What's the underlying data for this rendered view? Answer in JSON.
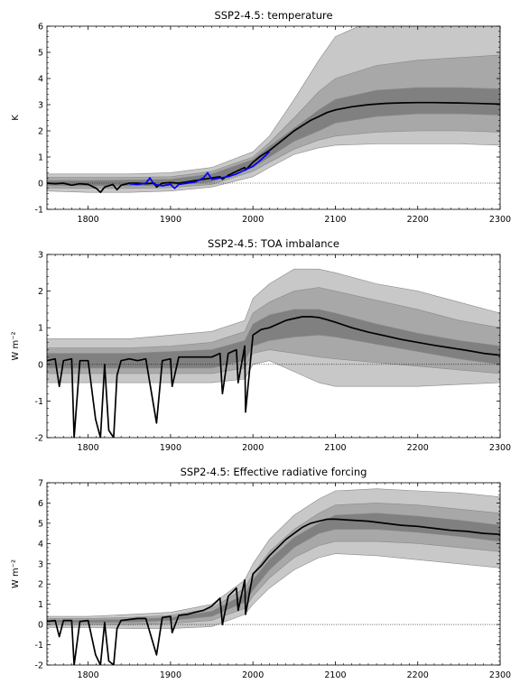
{
  "chart_data": [
    {
      "type": "area",
      "title": "SSP2-4.5: temperature",
      "ylabel": "K",
      "xlim": [
        1750,
        2300
      ],
      "ylim": [
        -1,
        6
      ],
      "xticks": [
        "1800",
        "1900",
        "2000",
        "2100",
        "2200",
        "2300"
      ],
      "yticks": [
        "-1",
        "0",
        "1",
        "2",
        "3",
        "4",
        "5",
        "6"
      ],
      "zero_line": true,
      "bands": [
        {
          "name": "outer",
          "color": "#c8c8c8",
          "x": [
            1750,
            1800,
            1850,
            1900,
            1950,
            2000,
            2020,
            2050,
            2080,
            2100,
            2150,
            2200,
            2250,
            2300
          ],
          "lower": [
            -0.3,
            -0.35,
            -0.35,
            -0.3,
            -0.15,
            0.25,
            0.6,
            1.1,
            1.35,
            1.45,
            1.5,
            1.5,
            1.5,
            1.45
          ],
          "upper": [
            0.35,
            0.35,
            0.35,
            0.4,
            0.6,
            1.2,
            1.8,
            3.2,
            4.7,
            5.6,
            6.3,
            6.6,
            6.8,
            6.9
          ]
        },
        {
          "name": "middle",
          "color": "#a8a8a8",
          "x": [
            1750,
            1800,
            1850,
            1900,
            1950,
            2000,
            2020,
            2050,
            2080,
            2100,
            2150,
            2200,
            2250,
            2300
          ],
          "lower": [
            -0.18,
            -0.2,
            -0.2,
            -0.17,
            -0.05,
            0.45,
            0.8,
            1.3,
            1.65,
            1.8,
            1.95,
            2.0,
            2.0,
            1.95
          ],
          "upper": [
            0.22,
            0.22,
            0.22,
            0.25,
            0.45,
            1.0,
            1.55,
            2.5,
            3.5,
            4.0,
            4.5,
            4.7,
            4.8,
            4.9
          ]
        },
        {
          "name": "inner",
          "color": "#808080",
          "x": [
            1750,
            1800,
            1850,
            1900,
            1950,
            2000,
            2020,
            2050,
            2080,
            2100,
            2150,
            2200,
            2250,
            2300
          ],
          "lower": [
            -0.08,
            -0.1,
            -0.1,
            -0.08,
            0.05,
            0.6,
            1.0,
            1.6,
            2.0,
            2.3,
            2.55,
            2.65,
            2.65,
            2.6
          ],
          "upper": [
            0.1,
            0.1,
            0.12,
            0.15,
            0.35,
            0.9,
            1.4,
            2.1,
            2.8,
            3.2,
            3.55,
            3.65,
            3.65,
            3.6
          ]
        }
      ],
      "series": [
        {
          "color": "#000000",
          "x": [
            1750,
            1760,
            1770,
            1780,
            1790,
            1800,
            1810,
            1815,
            1820,
            1830,
            1835,
            1840,
            1850,
            1860,
            1870,
            1880,
            1883,
            1890,
            1900,
            1910,
            1920,
            1930,
            1940,
            1950,
            1960,
            1963,
            1970,
            1980,
            1990,
            1991,
            2000,
            2010,
            2020,
            2030,
            2040,
            2050,
            2060,
            2070,
            2080,
            2090,
            2100,
            2120,
            2140,
            2160,
            2180,
            2200,
            2220,
            2240,
            2260,
            2280,
            2300
          ],
          "y": [
            0.0,
            -0.02,
            0.0,
            -0.08,
            -0.02,
            -0.05,
            -0.2,
            -0.35,
            -0.15,
            -0.05,
            -0.25,
            -0.08,
            0.0,
            0.0,
            -0.02,
            0.0,
            -0.15,
            0.0,
            0.02,
            0.0,
            0.05,
            0.1,
            0.15,
            0.2,
            0.25,
            0.15,
            0.3,
            0.45,
            0.6,
            0.5,
            0.8,
            1.05,
            1.25,
            1.5,
            1.75,
            2.0,
            2.2,
            2.4,
            2.55,
            2.7,
            2.8,
            2.92,
            3.0,
            3.05,
            3.07,
            3.08,
            3.08,
            3.07,
            3.06,
            3.04,
            3.02
          ]
        },
        {
          "color": "#0000ff",
          "x": [
            1850,
            1860,
            1870,
            1875,
            1880,
            1890,
            1900,
            1905,
            1910,
            1920,
            1930,
            1940,
            1945,
            1950,
            1960,
            1970,
            1980,
            1990,
            2000,
            2010,
            2020
          ],
          "y": [
            -0.02,
            -0.05,
            0.0,
            0.2,
            -0.05,
            -0.1,
            -0.05,
            -0.2,
            -0.05,
            0.0,
            0.05,
            0.2,
            0.4,
            0.15,
            0.2,
            0.25,
            0.35,
            0.5,
            0.65,
            0.9,
            1.2
          ]
        }
      ]
    },
    {
      "type": "area",
      "title": "SSP2-4.5: TOA imbalance",
      "ylabel": "W m⁻²",
      "xlim": [
        1750,
        2300
      ],
      "ylim": [
        -2,
        3
      ],
      "xticks": [
        "1800",
        "1900",
        "2000",
        "2100",
        "2200",
        "2300"
      ],
      "yticks": [
        "-2",
        "-1",
        "0",
        "1",
        "2",
        "3"
      ],
      "zero_line": true,
      "bands": [
        {
          "name": "outer",
          "color": "#c8c8c8",
          "x": [
            1750,
            1800,
            1850,
            1900,
            1950,
            1990,
            2000,
            2020,
            2050,
            2080,
            2100,
            2150,
            2200,
            2250,
            2300
          ],
          "lower": [
            -0.5,
            -0.5,
            -0.5,
            -0.5,
            -0.5,
            -0.4,
            0.0,
            0.1,
            -0.2,
            -0.5,
            -0.6,
            -0.6,
            -0.6,
            -0.55,
            -0.5
          ],
          "upper": [
            0.7,
            0.7,
            0.7,
            0.8,
            0.9,
            1.2,
            1.8,
            2.2,
            2.6,
            2.6,
            2.5,
            2.2,
            2.0,
            1.7,
            1.4
          ]
        },
        {
          "name": "middle",
          "color": "#a8a8a8",
          "x": [
            1750,
            1800,
            1850,
            1900,
            1950,
            1990,
            2000,
            2020,
            2050,
            2080,
            2100,
            2150,
            2200,
            2250,
            2300
          ],
          "lower": [
            -0.25,
            -0.25,
            -0.25,
            -0.25,
            -0.25,
            -0.1,
            0.3,
            0.4,
            0.3,
            0.2,
            0.15,
            0.05,
            -0.05,
            -0.15,
            -0.25
          ],
          "upper": [
            0.45,
            0.45,
            0.45,
            0.5,
            0.6,
            0.9,
            1.4,
            1.7,
            2.0,
            2.1,
            2.0,
            1.75,
            1.5,
            1.2,
            1.0
          ]
        },
        {
          "name": "inner",
          "color": "#808080",
          "x": [
            1750,
            1800,
            1850,
            1900,
            1950,
            1990,
            2000,
            2020,
            2050,
            2080,
            2100,
            2150,
            2200,
            2250,
            2300
          ],
          "lower": [
            -0.1,
            -0.1,
            -0.1,
            -0.1,
            -0.1,
            0.1,
            0.5,
            0.65,
            0.75,
            0.8,
            0.75,
            0.55,
            0.35,
            0.15,
            0.0
          ],
          "upper": [
            0.3,
            0.3,
            0.3,
            0.35,
            0.4,
            0.65,
            1.1,
            1.35,
            1.5,
            1.5,
            1.4,
            1.1,
            0.85,
            0.65,
            0.5
          ]
        }
      ],
      "series": [
        {
          "color": "#000000",
          "x": [
            1750,
            1760,
            1765,
            1770,
            1780,
            1783,
            1790,
            1800,
            1809,
            1815,
            1820,
            1825,
            1831,
            1835,
            1840,
            1850,
            1860,
            1870,
            1883,
            1890,
            1900,
            1902,
            1910,
            1920,
            1930,
            1940,
            1950,
            1960,
            1963,
            1970,
            1980,
            1982,
            1990,
            1991,
            2000,
            2010,
            2020,
            2030,
            2040,
            2050,
            2060,
            2070,
            2080,
            2090,
            2100,
            2120,
            2140,
            2160,
            2180,
            2200,
            2220,
            2240,
            2260,
            2280,
            2300
          ],
          "y": [
            0.1,
            0.15,
            -0.6,
            0.1,
            0.15,
            -2.0,
            0.1,
            0.1,
            -1.5,
            -2.0,
            0.0,
            -1.8,
            -2.0,
            -0.3,
            0.1,
            0.15,
            0.1,
            0.15,
            -1.6,
            0.1,
            0.15,
            -0.6,
            0.2,
            0.2,
            0.2,
            0.2,
            0.2,
            0.3,
            -0.8,
            0.3,
            0.4,
            -0.5,
            0.5,
            -1.3,
            0.8,
            0.95,
            1.0,
            1.1,
            1.2,
            1.25,
            1.3,
            1.3,
            1.28,
            1.22,
            1.15,
            1.0,
            0.88,
            0.78,
            0.68,
            0.6,
            0.52,
            0.45,
            0.38,
            0.3,
            0.25
          ]
        }
      ]
    },
    {
      "type": "area",
      "title": "SSP2-4.5: Effective radiative forcing",
      "ylabel": "W m⁻²",
      "xlim": [
        1750,
        2300
      ],
      "ylim": [
        -2,
        7
      ],
      "xticks": [
        "1800",
        "1900",
        "2000",
        "2100",
        "2200",
        "2300"
      ],
      "yticks": [
        "-2",
        "-1",
        "0",
        "1",
        "2",
        "3",
        "4",
        "5",
        "6",
        "7"
      ],
      "zero_line": true,
      "bands": [
        {
          "name": "outer",
          "color": "#c8c8c8",
          "x": [
            1750,
            1800,
            1850,
            1900,
            1950,
            1990,
            2000,
            2020,
            2050,
            2080,
            2100,
            2150,
            2200,
            2250,
            2300
          ],
          "lower": [
            -0.15,
            -0.15,
            -0.2,
            -0.2,
            -0.1,
            0.5,
            1.0,
            1.8,
            2.7,
            3.3,
            3.5,
            3.4,
            3.2,
            3.0,
            2.8
          ],
          "upper": [
            0.4,
            0.4,
            0.5,
            0.6,
            1.0,
            2.2,
            3.0,
            4.2,
            5.4,
            6.2,
            6.6,
            6.7,
            6.6,
            6.5,
            6.3
          ]
        },
        {
          "name": "middle",
          "color": "#a8a8a8",
          "x": [
            1750,
            1800,
            1850,
            1900,
            1950,
            1990,
            2000,
            2020,
            2050,
            2080,
            2100,
            2150,
            2200,
            2250,
            2300
          ],
          "lower": [
            0.0,
            0.0,
            0.0,
            0.05,
            0.2,
            0.8,
            1.4,
            2.3,
            3.3,
            3.9,
            4.1,
            4.1,
            4.0,
            3.8,
            3.6
          ],
          "upper": [
            0.3,
            0.3,
            0.35,
            0.45,
            0.8,
            1.8,
            2.5,
            3.6,
            4.7,
            5.5,
            5.9,
            6.0,
            5.9,
            5.7,
            5.5
          ]
        },
        {
          "name": "inner",
          "color": "#808080",
          "x": [
            1750,
            1800,
            1850,
            1900,
            1950,
            1990,
            2000,
            2020,
            2050,
            2080,
            2100,
            2150,
            2200,
            2250,
            2300
          ],
          "lower": [
            0.1,
            0.1,
            0.12,
            0.2,
            0.4,
            1.1,
            1.7,
            2.7,
            3.8,
            4.5,
            4.7,
            4.7,
            4.55,
            4.35,
            4.1
          ],
          "upper": [
            0.22,
            0.22,
            0.25,
            0.35,
            0.65,
            1.5,
            2.2,
            3.2,
            4.3,
            5.0,
            5.4,
            5.5,
            5.35,
            5.15,
            4.9
          ]
        }
      ],
      "series": [
        {
          "color": "#000000",
          "x": [
            1750,
            1760,
            1765,
            1770,
            1780,
            1783,
            1790,
            1800,
            1809,
            1815,
            1820,
            1825,
            1831,
            1835,
            1840,
            1850,
            1860,
            1870,
            1883,
            1890,
            1900,
            1902,
            1910,
            1920,
            1930,
            1940,
            1950,
            1960,
            1963,
            1970,
            1980,
            1982,
            1990,
            1991,
            2000,
            2010,
            2020,
            2030,
            2040,
            2050,
            2060,
            2070,
            2080,
            2090,
            2100,
            2120,
            2140,
            2160,
            2180,
            2200,
            2220,
            2240,
            2260,
            2280,
            2300
          ],
          "y": [
            0.15,
            0.2,
            -0.6,
            0.2,
            0.2,
            -2.0,
            0.15,
            0.2,
            -1.5,
            -2.0,
            0.1,
            -1.8,
            -2.0,
            -0.2,
            0.2,
            0.25,
            0.3,
            0.3,
            -1.5,
            0.35,
            0.4,
            -0.4,
            0.45,
            0.5,
            0.6,
            0.7,
            0.9,
            1.3,
            0.0,
            1.4,
            1.8,
            0.7,
            2.2,
            0.5,
            2.5,
            2.9,
            3.4,
            3.8,
            4.2,
            4.5,
            4.8,
            5.0,
            5.1,
            5.2,
            5.2,
            5.15,
            5.1,
            5.0,
            4.9,
            4.85,
            4.75,
            4.65,
            4.6,
            4.5,
            4.45
          ]
        }
      ]
    }
  ]
}
